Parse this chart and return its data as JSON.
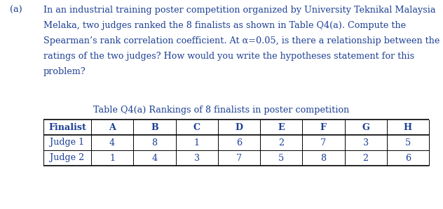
{
  "label_a": "(a)",
  "para_lines": [
    "In an industrial training poster competition organized by University Teknikal Malaysia",
    "Melaka, two judges ranked the 8 finalists as shown in Table Q4(a). Compute the",
    "Spearman’s rank correlation coefficient. At α=0.05, is there a relationship between the",
    "ratings of the two judges? How would you write the hypotheses statement for this",
    "problem?"
  ],
  "table_title": "Table Q4(a) Rankings of 8 finalists in poster competition",
  "col_headers": [
    "Finalist",
    "A",
    "B",
    "C",
    "D",
    "E",
    "F",
    "G",
    "H"
  ],
  "row1_label": "Judge 1",
  "row1_values": [
    "4",
    "8",
    "1",
    "6",
    "2",
    "7",
    "3",
    "5"
  ],
  "row2_label": "Judge 2",
  "row2_values": [
    "1",
    "4",
    "3",
    "7",
    "5",
    "8",
    "2",
    "6"
  ],
  "text_color": "#1c3f94",
  "bg_color": "#ffffff",
  "font_size_para": 9.2,
  "font_size_table_title": 9.2,
  "font_size_table": 9.2
}
